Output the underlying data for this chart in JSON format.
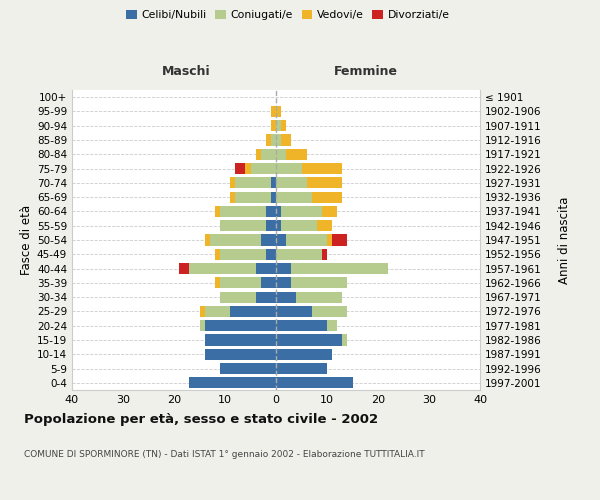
{
  "age_groups": [
    "0-4",
    "5-9",
    "10-14",
    "15-19",
    "20-24",
    "25-29",
    "30-34",
    "35-39",
    "40-44",
    "45-49",
    "50-54",
    "55-59",
    "60-64",
    "65-69",
    "70-74",
    "75-79",
    "80-84",
    "85-89",
    "90-94",
    "95-99",
    "100+"
  ],
  "birth_years": [
    "1997-2001",
    "1992-1996",
    "1987-1991",
    "1982-1986",
    "1977-1981",
    "1972-1976",
    "1967-1971",
    "1962-1966",
    "1957-1961",
    "1952-1956",
    "1947-1951",
    "1942-1946",
    "1937-1941",
    "1932-1936",
    "1927-1931",
    "1922-1926",
    "1917-1921",
    "1912-1916",
    "1907-1911",
    "1902-1906",
    "≤ 1901"
  ],
  "colors": {
    "celibe": "#3b6ea5",
    "coniugato": "#b5cc8e",
    "vedovo": "#f0b429",
    "divorziato": "#cc2222"
  },
  "male": {
    "celibe": [
      17,
      11,
      14,
      14,
      14,
      9,
      4,
      3,
      4,
      2,
      3,
      2,
      2,
      1,
      1,
      0,
      0,
      0,
      0,
      0,
      0
    ],
    "coniugato": [
      0,
      0,
      0,
      0,
      1,
      5,
      7,
      8,
      13,
      9,
      10,
      9,
      9,
      7,
      7,
      5,
      3,
      1,
      0,
      0,
      0
    ],
    "vedovo": [
      0,
      0,
      0,
      0,
      0,
      1,
      0,
      1,
      0,
      1,
      1,
      0,
      1,
      1,
      1,
      1,
      1,
      1,
      1,
      1,
      0
    ],
    "divorziato": [
      0,
      0,
      0,
      0,
      0,
      0,
      0,
      0,
      2,
      0,
      0,
      0,
      0,
      0,
      0,
      2,
      0,
      0,
      0,
      0,
      0
    ]
  },
  "female": {
    "nubile": [
      15,
      10,
      11,
      13,
      10,
      7,
      4,
      3,
      3,
      0,
      2,
      1,
      1,
      0,
      0,
      0,
      0,
      0,
      0,
      0,
      0
    ],
    "coniugata": [
      0,
      0,
      0,
      1,
      2,
      7,
      9,
      11,
      19,
      9,
      8,
      7,
      8,
      7,
      6,
      5,
      2,
      1,
      1,
      0,
      0
    ],
    "vedova": [
      0,
      0,
      0,
      0,
      0,
      0,
      0,
      0,
      0,
      0,
      1,
      3,
      3,
      6,
      7,
      8,
      4,
      2,
      1,
      1,
      0
    ],
    "divorziata": [
      0,
      0,
      0,
      0,
      0,
      0,
      0,
      0,
      0,
      1,
      3,
      0,
      0,
      0,
      0,
      0,
      0,
      0,
      0,
      0,
      0
    ]
  },
  "xlim": [
    -40,
    40
  ],
  "xticks": [
    -40,
    -30,
    -20,
    -10,
    0,
    10,
    20,
    30,
    40
  ],
  "xticklabels": [
    "40",
    "30",
    "20",
    "10",
    "0",
    "10",
    "20",
    "30",
    "40"
  ],
  "title": "Popolazione per età, sesso e stato civile - 2002",
  "subtitle": "COMUNE DI SPORMINORE (TN) - Dati ISTAT 1° gennaio 2002 - Elaborazione TUTTITALIA.IT",
  "ylabel_left": "Fasce di età",
  "ylabel_right": "Anni di nascita",
  "header_left": "Maschi",
  "header_right": "Femmine",
  "legend_labels": [
    "Celibi/Nubili",
    "Coniugati/e",
    "Vedovi/e",
    "Divorziati/e"
  ],
  "background_color": "#f0f0eb",
  "plot_bg": "#ffffff"
}
